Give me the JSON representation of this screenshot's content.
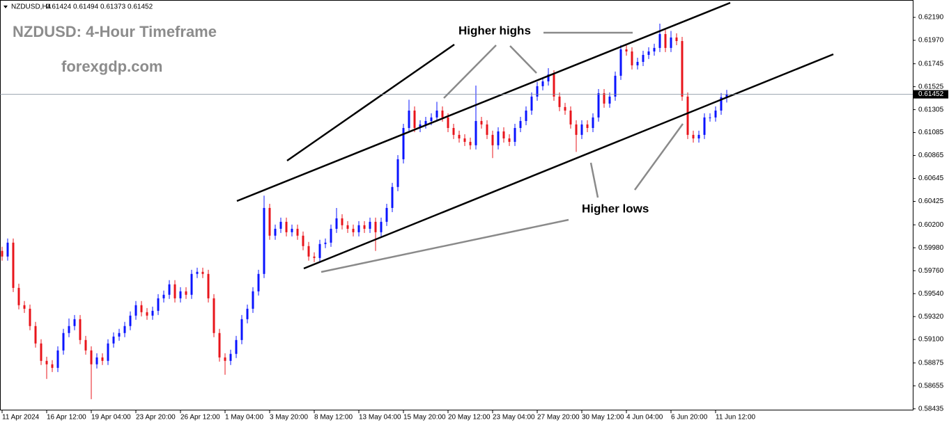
{
  "chart_data": {
    "type": "candlestick",
    "symbol": "NZDUSD,H4",
    "title": "NZDUSD: 4-Hour Timeframe",
    "subtitle": "forexgdp.com",
    "annotations": [
      "Higher highs",
      "Higher lows"
    ],
    "up_color": "#0a14ff",
    "down_color": "#e8141b",
    "x": [
      "11 Apr 2024",
      null,
      null,
      null,
      null,
      null,
      null,
      null,
      "16 Apr 12:00",
      null,
      null,
      null,
      null,
      null,
      null,
      null,
      "19 Apr 04:00",
      null,
      null,
      null,
      null,
      null,
      null,
      null,
      "23 Apr 20:00",
      null,
      null,
      null,
      null,
      null,
      null,
      null,
      "26 Apr 12:00",
      null,
      null,
      null,
      null,
      null,
      null,
      null,
      "1 May 04:00",
      null,
      null,
      null,
      null,
      null,
      null,
      null,
      "3 May 20:00",
      null,
      null,
      null,
      null,
      null,
      null,
      null,
      "8 May 12:00",
      null,
      null,
      null,
      null,
      null,
      null,
      null,
      "13 May 04:00",
      null,
      null,
      null,
      null,
      null,
      null,
      null,
      "15 May 20:00",
      null,
      null,
      null,
      null,
      null,
      null,
      null,
      "20 May 12:00",
      null,
      null,
      null,
      null,
      null,
      null,
      null,
      "23 May 04:00",
      null,
      null,
      null,
      null,
      null,
      null,
      null,
      "27 May 20:00",
      null,
      null,
      null,
      null,
      null,
      null,
      null,
      "30 May 12:00",
      null,
      null,
      null,
      null,
      null,
      null,
      null,
      "4 Jun 04:00",
      null,
      null,
      null,
      null,
      null,
      null,
      null,
      "6 Jun 20:00",
      null,
      null,
      null,
      null,
      null,
      null,
      null,
      "11 Jun 12:00",
      null,
      null
    ],
    "open": [
      0.5995,
      0.59896,
      0.60029,
      0.59595,
      0.59429,
      0.59395,
      0.59229,
      0.59062,
      0.58895,
      0.58862,
      0.58828,
      0.58995,
      0.59162,
      0.59229,
      0.59295,
      0.59095,
      0.58995,
      0.58862,
      0.58928,
      0.58895,
      0.59062,
      0.59128,
      0.59162,
      0.59229,
      0.59329,
      0.59429,
      0.59362,
      0.59329,
      0.59375,
      0.59495,
      0.59529,
      0.59629,
      0.59495,
      0.59562,
      0.59529,
      0.59729,
      0.59749,
      0.59729,
      0.59495,
      0.59162,
      0.58928,
      0.58895,
      0.58962,
      0.59095,
      0.59295,
      0.59395,
      0.59562,
      0.59729,
      0.60362,
      0.60096,
      0.60162,
      0.60229,
      0.60129,
      0.60162,
      0.60096,
      0.59996,
      0.59896,
      0.59882,
      0.60016,
      0.60029,
      0.60162,
      0.60262,
      0.60196,
      0.60162,
      0.60129,
      0.60196,
      0.60162,
      0.60229,
      0.60129,
      0.60229,
      0.60362,
      0.60563,
      0.60829,
      0.61129,
      0.61296,
      0.61129,
      0.61163,
      0.61196,
      0.6123,
      0.61296,
      0.6123,
      0.61129,
      0.61063,
      0.61029,
      0.60996,
      0.60963,
      0.61196,
      0.61163,
      0.61063,
      0.60963,
      0.61096,
      0.61029,
      0.60996,
      0.61129,
      0.61196,
      0.61296,
      0.6143,
      0.6153,
      0.61576,
      0.61643,
      0.6143,
      0.6133,
      0.61296,
      0.61163,
      0.61063,
      0.61163,
      0.61129,
      0.6123,
      0.61463,
      0.61363,
      0.6143,
      0.6163,
      0.61883,
      0.61863,
      0.6173,
      0.61763,
      0.6183,
      0.61863,
      0.61897,
      0.6203,
      0.61897,
      0.61997,
      0.61963,
      0.6143,
      0.61063,
      0.61029,
      0.61063,
      0.6123,
      0.6123,
      0.61296,
      0.61424
    ],
    "high": [
      0.5999,
      0.60069,
      0.60069,
      0.59635,
      0.59469,
      0.59435,
      0.59269,
      0.59102,
      0.58935,
      0.58902,
      0.59035,
      0.59202,
      0.59302,
      0.59335,
      0.59335,
      0.59135,
      0.59035,
      0.58968,
      0.58968,
      0.59102,
      0.59168,
      0.59202,
      0.59269,
      0.59369,
      0.59469,
      0.59469,
      0.59402,
      0.59415,
      0.59535,
      0.59569,
      0.59669,
      0.59669,
      0.59602,
      0.59602,
      0.59769,
      0.59789,
      0.59789,
      0.59769,
      0.59535,
      0.59202,
      0.58968,
      0.59002,
      0.59135,
      0.59335,
      0.59435,
      0.59602,
      0.59769,
      0.6048,
      0.60402,
      0.60202,
      0.60269,
      0.60269,
      0.60202,
      0.60202,
      0.60136,
      0.60036,
      0.59936,
      0.60056,
      0.60069,
      0.60202,
      0.60362,
      0.60302,
      0.60236,
      0.60202,
      0.60236,
      0.60236,
      0.60269,
      0.60269,
      0.60269,
      0.60402,
      0.60603,
      0.60869,
      0.61169,
      0.614,
      0.61336,
      0.61203,
      0.61236,
      0.6127,
      0.6138,
      0.61336,
      0.6127,
      0.61169,
      0.61103,
      0.61069,
      0.61036,
      0.61536,
      0.61236,
      0.61203,
      0.61103,
      0.61136,
      0.61136,
      0.61069,
      0.61169,
      0.61236,
      0.61336,
      0.6147,
      0.6157,
      0.61616,
      0.61703,
      0.61683,
      0.6147,
      0.6137,
      0.61336,
      0.61203,
      0.61203,
      0.61203,
      0.6127,
      0.61503,
      0.61503,
      0.6147,
      0.6167,
      0.61923,
      0.61923,
      0.61903,
      0.61803,
      0.6187,
      0.61903,
      0.61937,
      0.6213,
      0.6207,
      0.6206,
      0.62037,
      0.62003,
      0.6147,
      0.61103,
      0.61103,
      0.6127,
      0.6127,
      0.61336,
      0.61464,
      0.61494
    ],
    "low": [
      0.59856,
      0.59856,
      0.59555,
      0.59389,
      0.59355,
      0.59189,
      0.59022,
      0.58855,
      0.58722,
      0.58788,
      0.58788,
      0.58955,
      0.59122,
      0.59189,
      0.59055,
      0.58955,
      0.58528,
      0.58822,
      0.58855,
      0.58855,
      0.59022,
      0.59088,
      0.59122,
      0.59189,
      0.59289,
      0.59322,
      0.59289,
      0.59289,
      0.59335,
      0.59455,
      0.59489,
      0.59455,
      0.59455,
      0.59489,
      0.59489,
      0.59689,
      0.59689,
      0.59455,
      0.59122,
      0.58888,
      0.58762,
      0.58855,
      0.58922,
      0.59055,
      0.59255,
      0.59355,
      0.59522,
      0.59689,
      0.60056,
      0.60056,
      0.60122,
      0.60089,
      0.60089,
      0.60056,
      0.59956,
      0.59856,
      0.59842,
      0.59842,
      0.59976,
      0.59989,
      0.60122,
      0.60156,
      0.60122,
      0.60089,
      0.60089,
      0.60122,
      0.60122,
      0.5995,
      0.60089,
      0.60189,
      0.60322,
      0.60523,
      0.60789,
      0.61089,
      0.61089,
      0.61089,
      0.61123,
      0.61156,
      0.6119,
      0.6119,
      0.61089,
      0.61023,
      0.60989,
      0.60956,
      0.60923,
      0.60923,
      0.61123,
      0.61023,
      0.6084,
      0.60923,
      0.60989,
      0.60956,
      0.60956,
      0.61089,
      0.61156,
      0.61256,
      0.6139,
      0.6149,
      0.61536,
      0.6139,
      0.6129,
      0.61256,
      0.61123,
      0.609,
      0.61023,
      0.61089,
      0.61089,
      0.6119,
      0.61323,
      0.61323,
      0.6139,
      0.6159,
      0.61823,
      0.6169,
      0.6169,
      0.61723,
      0.6179,
      0.61823,
      0.61857,
      0.61857,
      0.61857,
      0.61923,
      0.6139,
      0.61023,
      0.60989,
      0.60989,
      0.61023,
      0.6119,
      0.6119,
      0.61256,
      0.61373
    ],
    "close": [
      0.59896,
      0.60029,
      0.59595,
      0.59429,
      0.59395,
      0.59229,
      0.59062,
      0.58895,
      0.58862,
      0.58828,
      0.58995,
      0.59162,
      0.59229,
      0.59295,
      0.59095,
      0.58995,
      0.58862,
      0.58928,
      0.58895,
      0.59062,
      0.59128,
      0.59162,
      0.59229,
      0.59329,
      0.59429,
      0.59362,
      0.59329,
      0.59375,
      0.59495,
      0.59529,
      0.59629,
      0.59495,
      0.59562,
      0.59529,
      0.59729,
      0.59749,
      0.59729,
      0.59495,
      0.59162,
      0.58928,
      0.58895,
      0.58962,
      0.59095,
      0.59295,
      0.59395,
      0.59562,
      0.59729,
      0.60362,
      0.60096,
      0.60162,
      0.60229,
      0.60129,
      0.60162,
      0.60096,
      0.59996,
      0.59896,
      0.59882,
      0.60016,
      0.60029,
      0.60162,
      0.60262,
      0.60196,
      0.60162,
      0.60129,
      0.60196,
      0.60162,
      0.60229,
      0.60129,
      0.60229,
      0.60362,
      0.60563,
      0.60829,
      0.61129,
      0.61296,
      0.61129,
      0.61163,
      0.61196,
      0.6123,
      0.61296,
      0.6123,
      0.61129,
      0.61063,
      0.61029,
      0.60996,
      0.60963,
      0.61196,
      0.61163,
      0.61063,
      0.60963,
      0.61096,
      0.61029,
      0.60996,
      0.61129,
      0.61196,
      0.61296,
      0.6143,
      0.6153,
      0.61576,
      0.61643,
      0.6143,
      0.6133,
      0.61296,
      0.61163,
      0.61063,
      0.61163,
      0.61129,
      0.6123,
      0.61463,
      0.61363,
      0.6143,
      0.6163,
      0.61883,
      0.61863,
      0.6173,
      0.61763,
      0.6183,
      0.61863,
      0.61897,
      0.6203,
      0.61897,
      0.61997,
      0.61963,
      0.6143,
      0.61063,
      0.61029,
      0.61063,
      0.6123,
      0.6123,
      0.61296,
      0.61424,
      0.61452
    ],
    "ylim": [
      0.5842,
      0.6233
    ],
    "yticks": [
      {
        "value": 0.6219,
        "label": "0.62190"
      },
      {
        "value": 0.6197,
        "label": "0.61970"
      },
      0.61745,
      0.61525,
      0.61305,
      0.61085,
      0.60865,
      0.60645,
      0.60425,
      {
        "value": 0.602,
        "label": "0.60200"
      },
      {
        "value": 0.5998,
        "label": "0.59980"
      },
      {
        "value": 0.5976,
        "label": "0.59760"
      },
      {
        "value": 0.5954,
        "label": "0.59540"
      },
      {
        "value": 0.5932,
        "label": "0.59320"
      },
      {
        "value": 0.591,
        "label": "0.59100"
      },
      0.58875,
      0.58655,
      0.58435
    ],
    "grid": false
  }
}
